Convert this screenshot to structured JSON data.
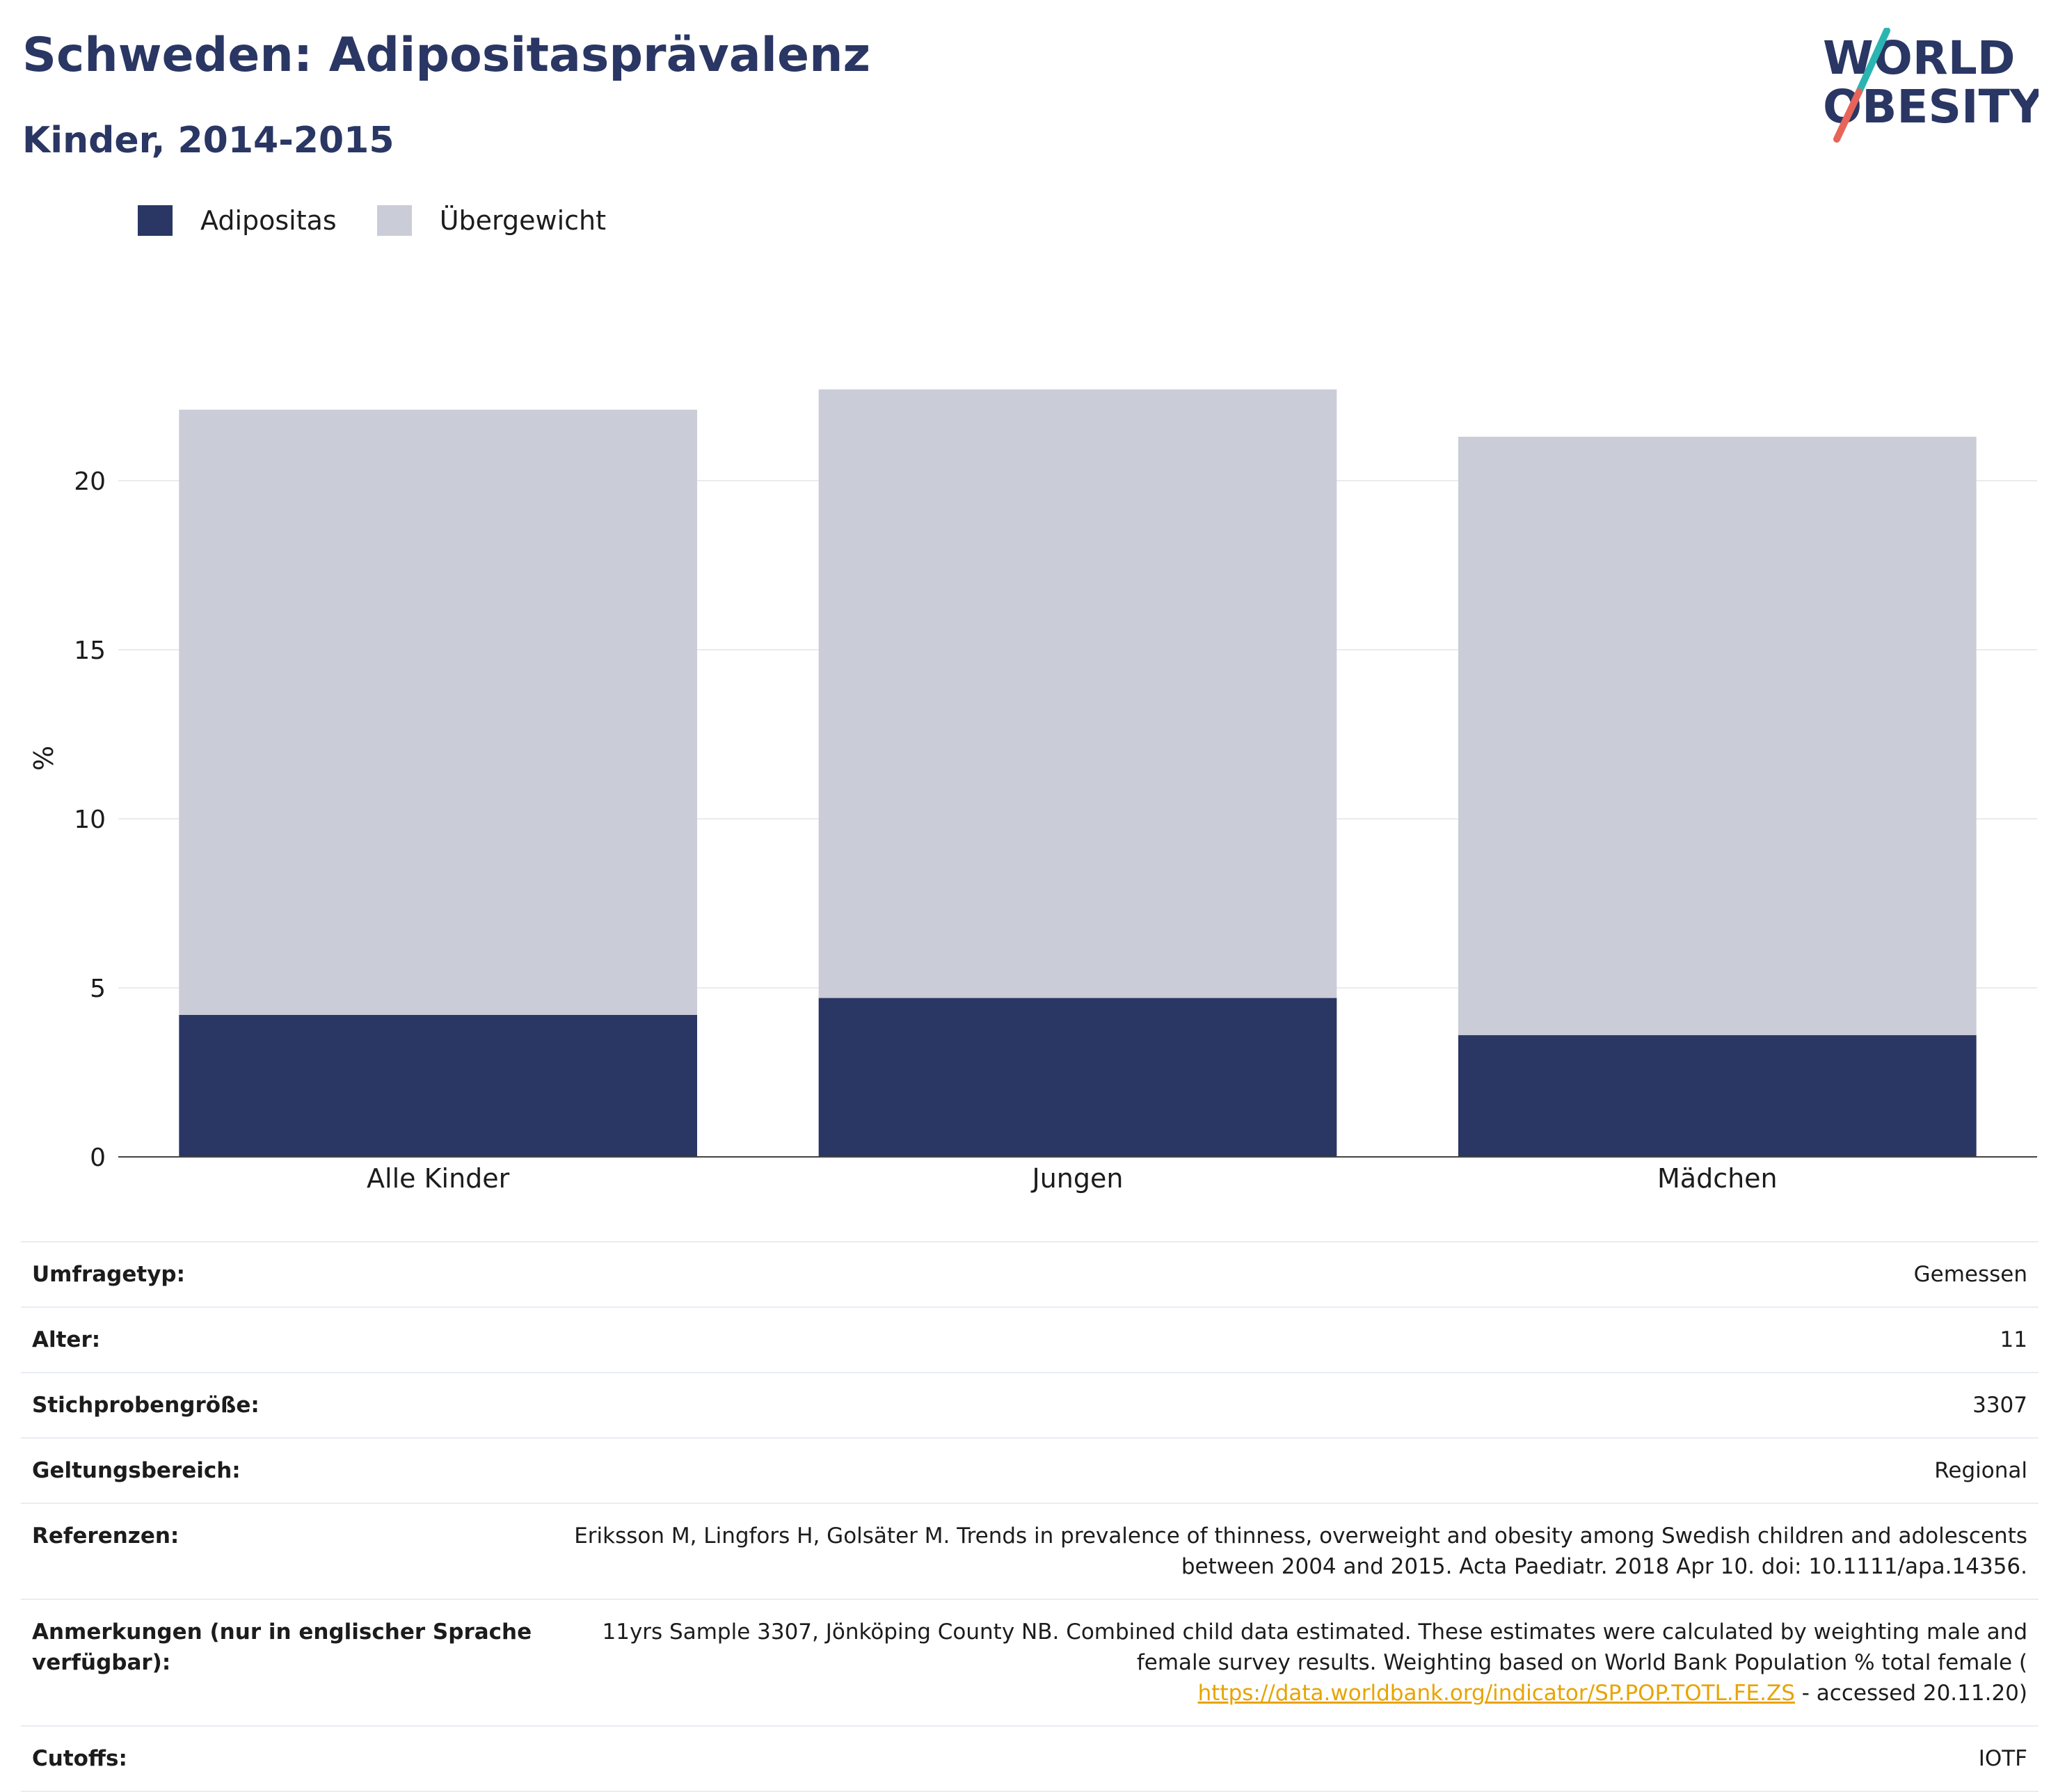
{
  "header": {
    "title": "Schweden: Adipositasprävalenz",
    "subtitle": "Kinder, 2014-2015"
  },
  "logo": {
    "line1": "WORLD",
    "line2": "OBESITY",
    "colors": {
      "text": "#2a3663",
      "slash_top": "#2bb5b2",
      "slash_bottom": "#e8645a"
    }
  },
  "legend": [
    {
      "label": "Adipositas",
      "color": "#2a3663"
    },
    {
      "label": "Übergewicht",
      "color": "#caccd8"
    }
  ],
  "chart_data": {
    "type": "bar",
    "stacked": true,
    "categories": [
      "Alle Kinder",
      "Jungen",
      "Mädchen"
    ],
    "series": [
      {
        "name": "Adipositas",
        "values": [
          4.2,
          4.7,
          3.6
        ],
        "color": "#2a3663"
      },
      {
        "name": "Übergewicht",
        "values": [
          17.9,
          18.0,
          17.7
        ],
        "color": "#caccd8"
      }
    ],
    "totals": [
      22.1,
      22.7,
      21.3
    ],
    "ylabel": "%",
    "xlabel": "",
    "yticks": [
      0,
      5,
      10,
      15,
      20
    ],
    "ylim": [
      0,
      23
    ],
    "grid": true,
    "legend_position": "top-left"
  },
  "info": {
    "survey_type": {
      "label": "Umfragetyp:",
      "value": "Gemessen"
    },
    "age": {
      "label": "Alter:",
      "value": "11"
    },
    "sample_size": {
      "label": "Stichprobengröße:",
      "value": "3307"
    },
    "scope": {
      "label": "Geltungsbereich:",
      "value": "Regional"
    },
    "references": {
      "label": "Referenzen:",
      "value": "Eriksson M, Lingfors H, Golsäter M. Trends in prevalence of thinness, overweight and obesity among Swedish children and adolescents between 2004 and 2015. Acta Paediatr. 2018 Apr 10. doi: 10.1111/apa.14356."
    },
    "notes": {
      "label": "Anmerkungen (nur in englischer Sprache verfügbar):",
      "text_before": "11yrs Sample 3307, Jönköping County NB. Combined child data estimated. These estimates were calculated by weighting male and female survey results. Weighting based on World Bank Population % total female (",
      "link": "https://data.worldbank.org/indicator/SP.POP.TOTL.FE.ZS",
      "text_after": " - accessed 20.11.20)"
    },
    "cutoffs": {
      "label": "Cutoffs:",
      "value": "IOTF"
    }
  }
}
